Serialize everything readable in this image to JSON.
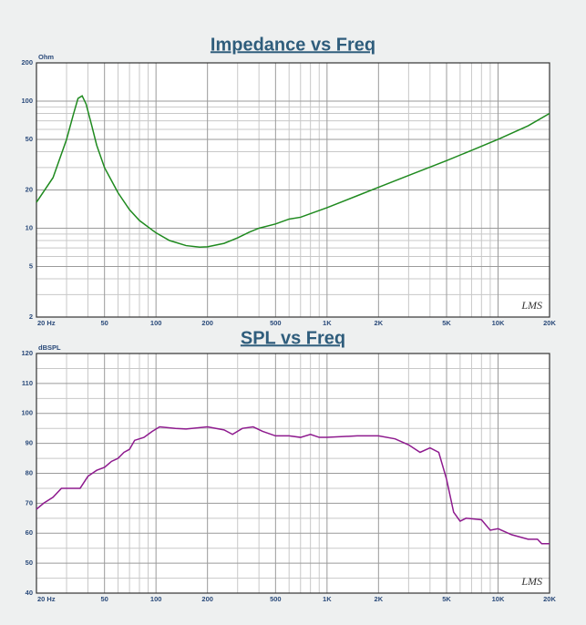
{
  "chart_data": [
    {
      "type": "line",
      "title": "Impedance vs Freq",
      "y_label": "Ohm",
      "annotation": "LMS",
      "xlog": true,
      "ylog": true,
      "grid": true,
      "color": "#1f8a1f",
      "xlim": [
        20,
        20000
      ],
      "ylim": [
        2,
        200
      ],
      "xticks": [
        {
          "value": 20,
          "label": "20 Hz"
        },
        50,
        100,
        200,
        500,
        {
          "value": 1000,
          "label": "1K"
        },
        {
          "value": 2000,
          "label": "2K"
        },
        {
          "value": 5000,
          "label": "5K"
        },
        {
          "value": 10000,
          "label": "10K"
        },
        {
          "value": 20000,
          "label": "20K"
        }
      ],
      "yticks": [
        2,
        5,
        10,
        20,
        50,
        100,
        200
      ],
      "xminor": [
        30,
        40,
        60,
        70,
        80,
        90,
        300,
        400,
        600,
        700,
        800,
        900,
        3000,
        4000,
        6000,
        7000,
        8000,
        9000
      ],
      "yminor": [
        3,
        4,
        6,
        7,
        8,
        9,
        30,
        40,
        60,
        70,
        80,
        90
      ],
      "x": [
        20,
        25,
        30,
        33,
        35,
        37,
        39,
        42,
        45,
        50,
        60,
        70,
        80,
        100,
        120,
        150,
        180,
        200,
        250,
        300,
        350,
        400,
        500,
        600,
        700,
        1000,
        1500,
        2000,
        3000,
        5000,
        7000,
        10000,
        15000,
        20000
      ],
      "values": [
        16,
        25,
        50,
        80,
        105,
        110,
        95,
        65,
        45,
        30,
        19,
        14,
        11.5,
        9.2,
        8,
        7.3,
        7.1,
        7.15,
        7.6,
        8.4,
        9.3,
        10,
        10.8,
        11.8,
        12.2,
        14.5,
        18,
        21,
        26,
        34,
        41,
        50,
        64,
        80
      ]
    },
    {
      "type": "line",
      "title": "SPL vs Freq",
      "y_label": "dBSPL",
      "annotation": "LMS",
      "xlog": true,
      "ylog": false,
      "grid": true,
      "color": "#8e1a8e",
      "xlim": [
        20,
        20000
      ],
      "ylim": [
        40,
        120
      ],
      "xticks": [
        {
          "value": 20,
          "label": "20 Hz"
        },
        50,
        100,
        200,
        500,
        {
          "value": 1000,
          "label": "1K"
        },
        {
          "value": 2000,
          "label": "2K"
        },
        {
          "value": 5000,
          "label": "5K"
        },
        {
          "value": 10000,
          "label": "10K"
        },
        {
          "value": 20000,
          "label": "20K"
        }
      ],
      "yticks": [
        40,
        50,
        60,
        70,
        80,
        90,
        100,
        110,
        120
      ],
      "xminor": [
        30,
        40,
        60,
        70,
        80,
        90,
        300,
        400,
        600,
        700,
        800,
        900,
        3000,
        4000,
        6000,
        7000,
        8000,
        9000
      ],
      "yminor": [
        45,
        55,
        65,
        75,
        85,
        95,
        105,
        115
      ],
      "x": [
        20,
        22,
        25,
        28,
        33,
        36,
        40,
        45,
        50,
        55,
        60,
        65,
        70,
        75,
        85,
        95,
        105,
        130,
        150,
        200,
        250,
        280,
        320,
        370,
        420,
        500,
        600,
        700,
        800,
        900,
        1000,
        1500,
        2000,
        2500,
        3000,
        3500,
        4000,
        4500,
        5000,
        5500,
        6000,
        6500,
        8000,
        9000,
        10000,
        12000,
        15000,
        17000,
        18000,
        20000
      ],
      "values": [
        68,
        70,
        72,
        75,
        75,
        75,
        79,
        81,
        82,
        84,
        85,
        87,
        88,
        91,
        92,
        94,
        95.5,
        95,
        94.8,
        95.5,
        94.5,
        93,
        95,
        95.5,
        94,
        92.5,
        92.5,
        92,
        93,
        92,
        92,
        92.5,
        92.5,
        91.5,
        89.5,
        87,
        88.5,
        87,
        78,
        67,
        64,
        65,
        64.5,
        61,
        61.5,
        59.5,
        58,
        58,
        56.5,
        56.5
      ]
    }
  ]
}
